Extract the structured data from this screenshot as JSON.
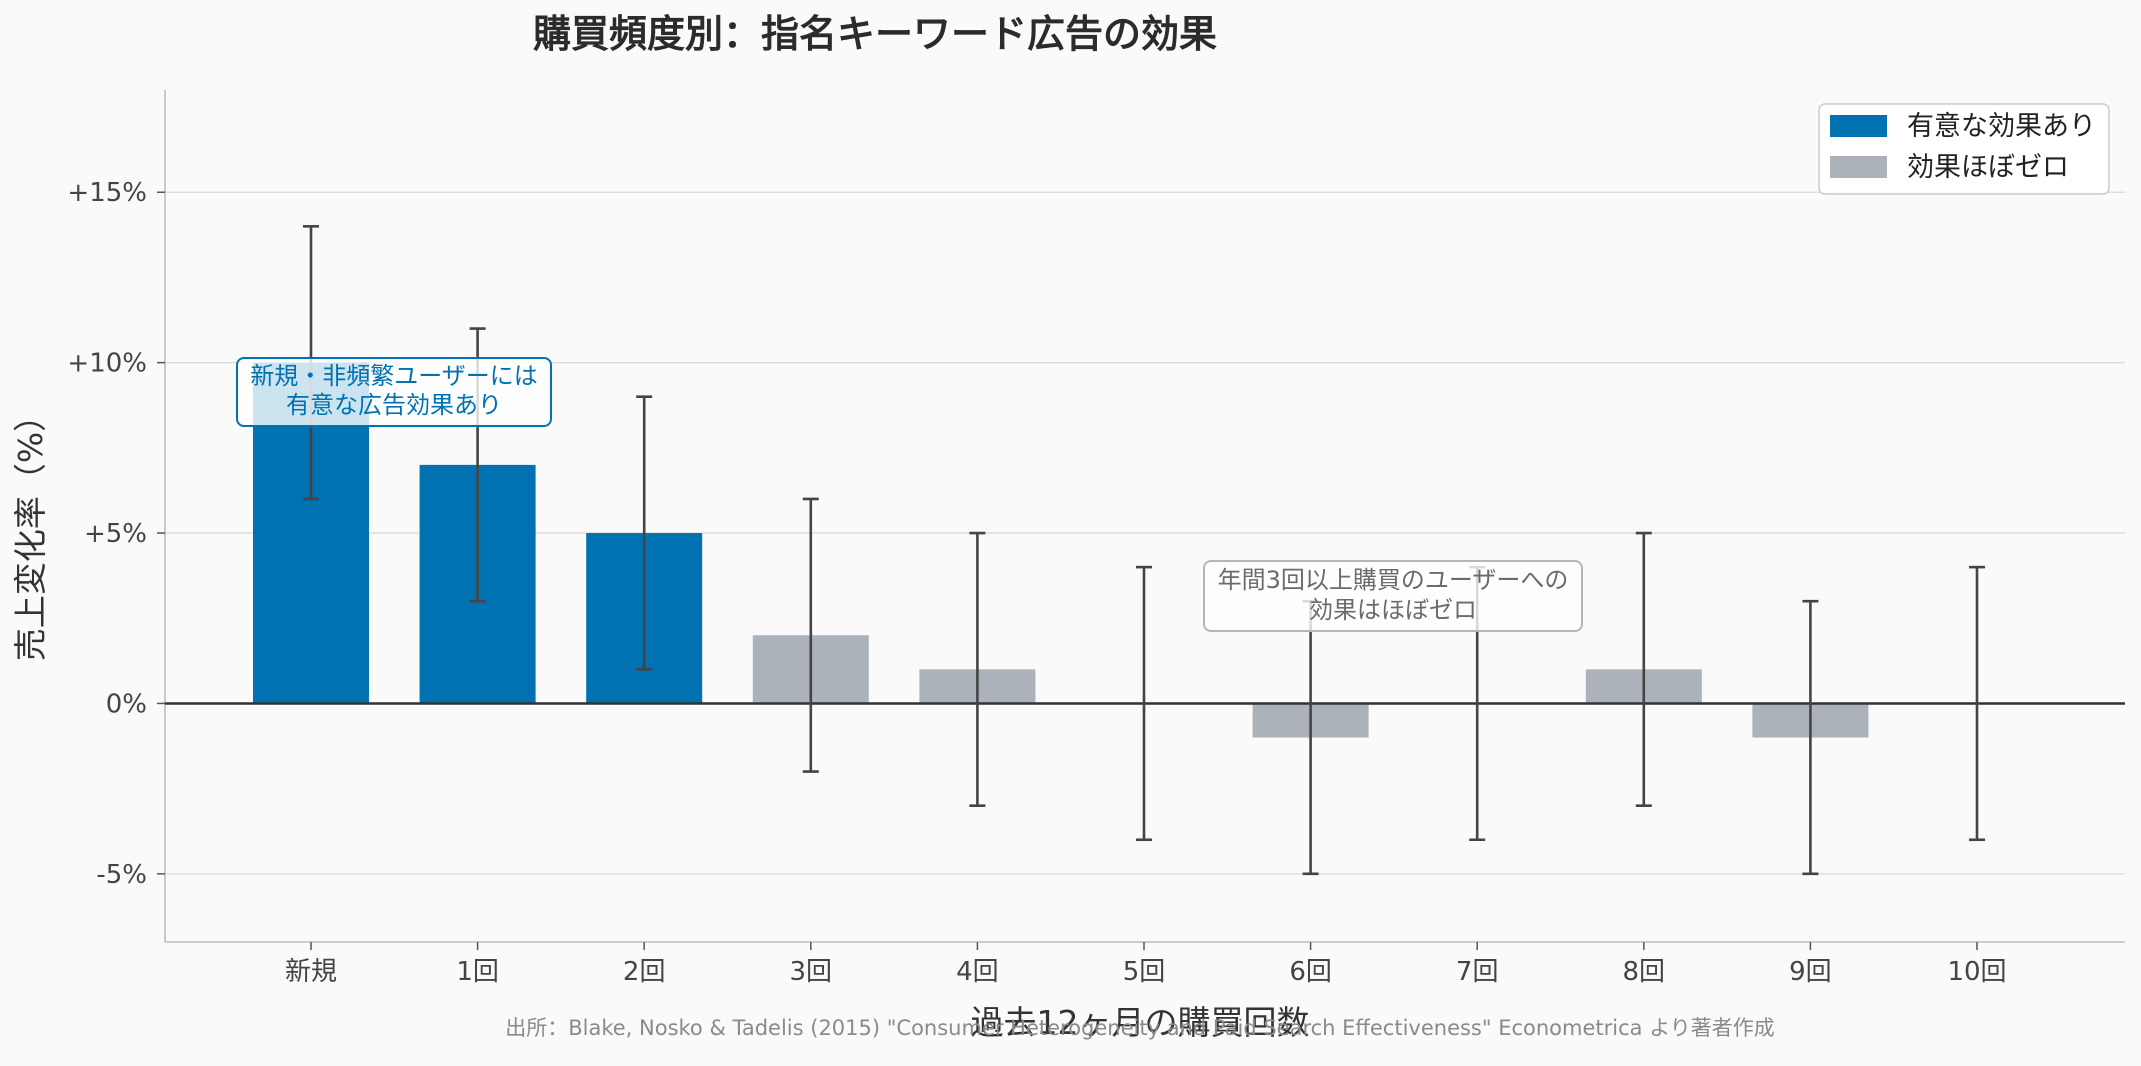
{
  "chart_data": {
    "type": "bar",
    "title": "購買頻度別：指名キーワード広告の効果",
    "xlabel": "過去12ヶ月の購買回数",
    "ylabel": "売上変化率（%）",
    "categories": [
      "新規",
      "1回",
      "2回",
      "3回",
      "4回",
      "5回",
      "6回",
      "7回",
      "8回",
      "9回",
      "10回"
    ],
    "values": [
      10,
      7,
      5,
      2,
      1,
      0,
      -1,
      0,
      1,
      -1,
      0
    ],
    "error_low": [
      6,
      3,
      1,
      -2,
      -3,
      -4,
      -5,
      -4,
      -3,
      -5,
      -4
    ],
    "error_high": [
      14,
      11,
      9,
      6,
      5,
      4,
      3,
      4,
      5,
      3,
      4
    ],
    "significant": [
      true,
      true,
      true,
      false,
      false,
      false,
      false,
      false,
      false,
      false,
      false
    ],
    "ylim": [
      -7,
      18
    ],
    "yticks": [
      -5,
      0,
      5,
      10,
      15
    ],
    "ytick_labels": [
      "-5%",
      "0%",
      "+5%",
      "+10%",
      "+15%"
    ],
    "legend": {
      "position": "top-right",
      "entries": [
        {
          "label": "有意な効果あり",
          "color": "#0072b2"
        },
        {
          "label": "効果ほぼゼロ",
          "color": "#abb2b9"
        }
      ]
    },
    "annotations": [
      {
        "text_line1": "新規・非頻繁ユーザーには",
        "text_line2": "有意な広告効果あり",
        "color": "#0072b2"
      },
      {
        "text_line1": "年間3回以上購買のユーザーへの",
        "text_line2": "効果はほぼゼロ",
        "color": "#6b6b6b"
      }
    ],
    "source": "出所：Blake, Nosko & Tadelis (2015) \"Consumer Heterogeneity and Paid Search Effectiveness\" Econometrica より著者作成",
    "colors": {
      "significant": "#0072b2",
      "not_significant": "#abb2b9",
      "error_bar": "#444444",
      "zero_line": "#333333"
    }
  }
}
